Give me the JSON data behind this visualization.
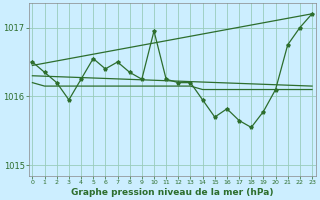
{
  "background_color": "#cceeff",
  "plot_bg_color": "#cceeff",
  "grid_color": "#99ccbb",
  "line_color": "#2d6e2d",
  "xlabel": "Graphe pression niveau de la mer (hPa)",
  "xlabel_fontsize": 6.5,
  "ylim": [
    1014.85,
    1017.35
  ],
  "yticks": [
    1015,
    1016,
    1017
  ],
  "xlim": [
    -0.3,
    23.3
  ],
  "xticks": [
    0,
    1,
    2,
    3,
    4,
    5,
    6,
    7,
    8,
    9,
    10,
    11,
    12,
    13,
    14,
    15,
    16,
    17,
    18,
    19,
    20,
    21,
    22,
    23
  ],
  "series_flat": [
    1016.2,
    1016.15,
    1016.15,
    1016.15,
    1016.15,
    1016.15,
    1016.15,
    1016.15,
    1016.15,
    1016.15,
    1016.15,
    1016.15,
    1016.15,
    1016.15,
    1016.1,
    1016.1,
    1016.1,
    1016.1,
    1016.1,
    1016.1,
    1016.1,
    1016.1,
    1016.1,
    1016.1
  ],
  "series_zigzag": [
    1016.5,
    1016.35,
    1016.2,
    1015.95,
    1016.25,
    1016.55,
    1016.4,
    1016.5,
    1016.35,
    1016.25,
    1016.95,
    1016.25,
    1016.2,
    1016.2,
    1015.95,
    1015.7,
    1015.82,
    1015.65,
    1015.55,
    1015.78,
    1016.1,
    1016.75,
    1017.0,
    1017.2
  ],
  "trend1_x": [
    0,
    23
  ],
  "trend1_y": [
    1016.45,
    1017.2
  ],
  "trend2_x": [
    0,
    23
  ],
  "trend2_y": [
    1016.3,
    1016.15
  ]
}
